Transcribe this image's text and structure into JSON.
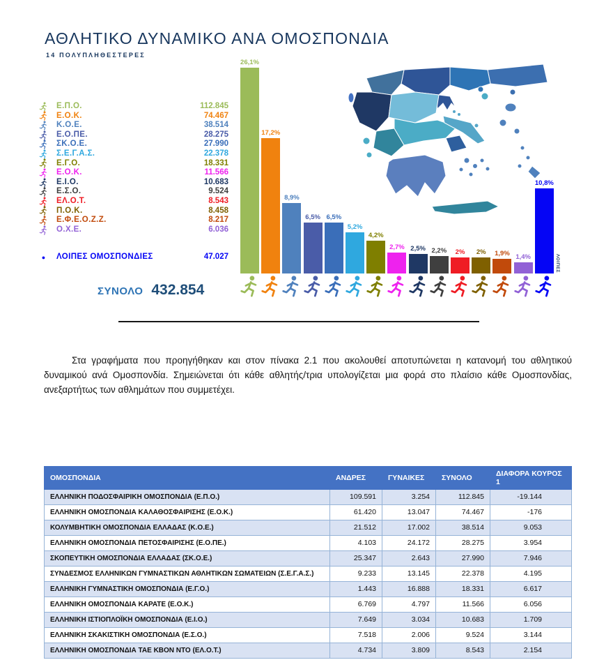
{
  "page": {
    "title": "ΑΘΛΗΤΙΚΟ ΔΥΝΑΜΙΚΟ ΑΝΑ ΟΜΟΣΠΟΝΔΙΑ",
    "subtitle": "14 ΠΟΛΥΠΛΗΘΕΣΤΕΡΕΣ"
  },
  "legend": {
    "items": [
      {
        "name": "Ε.Π.Ο.",
        "value": "112.845",
        "color": "#9BBB59",
        "icon": "football-icon"
      },
      {
        "name": "Ε.Ο.Κ.",
        "value": "74.467",
        "color": "#F0820F",
        "icon": "basketball-icon"
      },
      {
        "name": "Κ.Ο.Ε.",
        "value": "38.514",
        "color": "#4F81BD",
        "icon": "swimming-icon"
      },
      {
        "name": "Ε.Ο.ΠΕ.",
        "value": "28.275",
        "color": "#4A5CA8",
        "icon": "volleyball-icon"
      },
      {
        "name": "ΣΚ.Ο.Ε.",
        "value": "27.990",
        "color": "#3A6EB9",
        "icon": "shooting-icon"
      },
      {
        "name": "Σ.Ε.Γ.Α.Σ.",
        "value": "22.378",
        "color": "#2FA8DF",
        "icon": "athletics-icon"
      },
      {
        "name": "Ε.Γ.Ο.",
        "value": "18.331",
        "color": "#7F7F00",
        "icon": "gymnastics-icon"
      },
      {
        "name": "Ε.Ο.Κ.",
        "value": "11.566",
        "color": "#EE22EE",
        "icon": "karate-icon"
      },
      {
        "name": "Ε.Ι.Ο.",
        "value": "10.683",
        "color": "#1F3864",
        "icon": "sailing-icon"
      },
      {
        "name": "Ε.Σ.Ο.",
        "value": "9.524",
        "color": "#3F3F3F",
        "icon": "chess-icon"
      },
      {
        "name": "ΕΛ.Ο.Τ.",
        "value": "8.543",
        "color": "#EF1C24",
        "icon": "taekwondo-icon"
      },
      {
        "name": "Π.Ο.Κ.",
        "value": "8.458",
        "color": "#7F6000",
        "icon": "boxing-icon"
      },
      {
        "name": "Ε.Φ.Ε.Ο.Ζ.Ζ.",
        "value": "8.217",
        "color": "#C14A0B",
        "icon": "jujitsu-icon"
      },
      {
        "name": "Ο.Χ.Ε.",
        "value": "6.036",
        "color": "#9161D6",
        "icon": "handball-icon"
      }
    ],
    "others": {
      "name": "ΛΟΙΠΕΣ ΟΜΟΣΠΟΝΔΙΕΣ",
      "value": "47.027",
      "color": "#0505F5"
    },
    "total_label": "ΣΥΝΟΛΟ",
    "total_value": "432.854"
  },
  "chart_data": {
    "type": "bar",
    "title": "ΑΘΛΗΤΙΚΟ ΔΥΝΑΜΙΚΟ ΑΝΑ ΟΜΟΣΠΟΝΔΙΑ — 14 ΠΟΛΥΠΛΗΘΕΣΤΕΡΕΣ",
    "categories": [
      "Ε.Π.Ο.",
      "Ε.Ο.Κ.",
      "Κ.Ο.Ε.",
      "Ε.Ο.ΠΕ.",
      "ΣΚ.Ο.Ε.",
      "Σ.Ε.Γ.Α.Σ.",
      "Ε.Γ.Ο.",
      "Ε.Ο.Κ. (ΚΑΡΑΤΕ)",
      "Ε.Ι.Ο.",
      "Ε.Σ.Ο.",
      "ΕΛ.Ο.Τ.",
      "Π.Ο.Κ.",
      "Ε.Φ.Ε.Ο.Ζ.Ζ.",
      "Ο.Χ.Ε.",
      "ΛΟΙΠΕΣ"
    ],
    "values": [
      26.1,
      17.2,
      8.9,
      6.5,
      6.5,
      5.2,
      4.2,
      2.7,
      2.5,
      2.2,
      2.0,
      2.0,
      1.9,
      1.4,
      10.8
    ],
    "labels": [
      "26,1%",
      "17,2%",
      "8,9%",
      "6,5%",
      "6,5%",
      "5,2%",
      "4,2%",
      "2,7%",
      "2,5%",
      "2,2%",
      "2%",
      "2%",
      "1,9%",
      "1,4%",
      "10,8%"
    ],
    "colors": [
      "#9BBB59",
      "#F0820F",
      "#4F81BD",
      "#4A5CA8",
      "#3A6EB9",
      "#2FA8DF",
      "#7F7F00",
      "#EE22EE",
      "#1F3864",
      "#3F3F3F",
      "#EF1C24",
      "#7F6000",
      "#C14A0B",
      "#9161D6",
      "#0505F5"
    ],
    "icons": [
      "football-icon",
      "basketball-icon",
      "swimming-icon",
      "volleyball-icon",
      "shooting-icon",
      "athletics-icon",
      "gymnastics-icon",
      "karate-icon",
      "sailing-icon",
      "chess-icon",
      "taekwondo-icon",
      "boxing-icon",
      "jujitsu-icon",
      "handball-icon",
      "athlete-icon"
    ],
    "last_bar_caption": "ΛΟΙΠΕΣ",
    "unit": "%",
    "ylim": [
      0,
      27.2
    ],
    "grid": false,
    "legend_position": "left"
  },
  "paragraph": "Στα γραφήματα που προηγήθηκαν και στον πίνακα 2.1 που ακολουθεί αποτυπώνεται η κατανομή του αθλητικού δυναμικού ανά Ομοσπονδία. Σημειώνεται ότι κάθε αθλητής/τρια υπολογίζεται μια φορά στο πλαίσιο κάθε Ομοσπονδίας, ανεξαρτήτως των αθλημάτων που συμμετέχει.",
  "table": {
    "headers": [
      "ΟΜΟΣΠΟΝΔΙΑ",
      "ΑΝΔΡΕΣ",
      "ΓΥΝΑΙΚΕΣ",
      "ΣΥΝΟΛΟ",
      "ΔΙΑΦΟΡΑ ΚΟΥΡΟΣ 1"
    ],
    "rows": [
      [
        "ΕΛΛΗΝΙΚΗ ΠΟΔΟΣΦΑΙΡΙΚΗ ΟΜΟΣΠΟΝΔΙΑ (Ε.Π.Ο.)",
        "109.591",
        "3.254",
        "112.845",
        "-19.144"
      ],
      [
        "ΕΛΛΗΝΙΚΗ ΟΜΟΣΠΟΝΔΙΑ ΚΑΛΑΘΟΣΦΑΙΡΙΣΗΣ (Ε.Ο.Κ.)",
        "61.420",
        "13.047",
        "74.467",
        "-176"
      ],
      [
        "ΚΟΛΥΜΒΗΤΙΚΗ ΟΜΟΣΠΟΝΔΙΑ ΕΛΛΑΔΑΣ (Κ.Ο.Ε.)",
        "21.512",
        "17.002",
        "38.514",
        "9.053"
      ],
      [
        "ΕΛΛΗΝΙΚΗ ΟΜΟΣΠΟΝΔΙΑ ΠΕΤΟΣΦΑΙΡΙΣΗΣ (Ε.Ο.ΠΕ.)",
        "4.103",
        "24.172",
        "28.275",
        "3.954"
      ],
      [
        "ΣΚΟΠΕΥΤΙΚΗ ΟΜΟΣΠΟΝΔΙΑ ΕΛΛΑΔΑΣ (ΣΚ.Ο.Ε.)",
        "25.347",
        "2.643",
        "27.990",
        "7.946"
      ],
      [
        "ΣΥΝΔΕΣΜΟΣ ΕΛΛΗΝΙΚΩΝ ΓΥΜΝΑΣΤΙΚΩΝ ΑΘΛΗΤΙΚΩΝ ΣΩΜΑΤΕΙΩΝ (Σ.Ε.Γ.Α.Σ.)",
        "9.233",
        "13.145",
        "22.378",
        "4.195"
      ],
      [
        "ΕΛΛΗΝΙΚΗ ΓΥΜΝΑΣΤΙΚΗ ΟΜΟΣΠΟΝΔΙΑ (Ε.Γ.Ο.)",
        "1.443",
        "16.888",
        "18.331",
        "6.617"
      ],
      [
        "ΕΛΛΗΝΙΚΗ ΟΜΟΣΠΟΝΔΙΑ ΚΑΡΑΤΕ (Ε.Ο.Κ.)",
        "6.769",
        "4.797",
        "11.566",
        "6.056"
      ],
      [
        "ΕΛΛΗΝΙΚΗ ΙΣΤΙΟΠΛΟΪΚΗ ΟΜΟΣΠΟΝΔΙΑ (Ε.Ι.Ο.)",
        "7.649",
        "3.034",
        "10.683",
        "1.709"
      ],
      [
        "ΕΛΛΗΝΙΚΗ ΣΚΑΚΙΣΤΙΚΗ ΟΜΟΣΠΟΝΔΙΑ (Ε.Σ.Ο.)",
        "7.518",
        "2.006",
        "9.524",
        "3.144"
      ],
      [
        "ΕΛΛΗΝΙΚΗ ΟΜΟΣΠΟΝΔΙΑ ΤΑΕ ΚΒΟΝ ΝΤΟ (ΕΛ.Ο.Τ.)",
        "4.734",
        "3.809",
        "8.543",
        "2.154"
      ]
    ]
  }
}
